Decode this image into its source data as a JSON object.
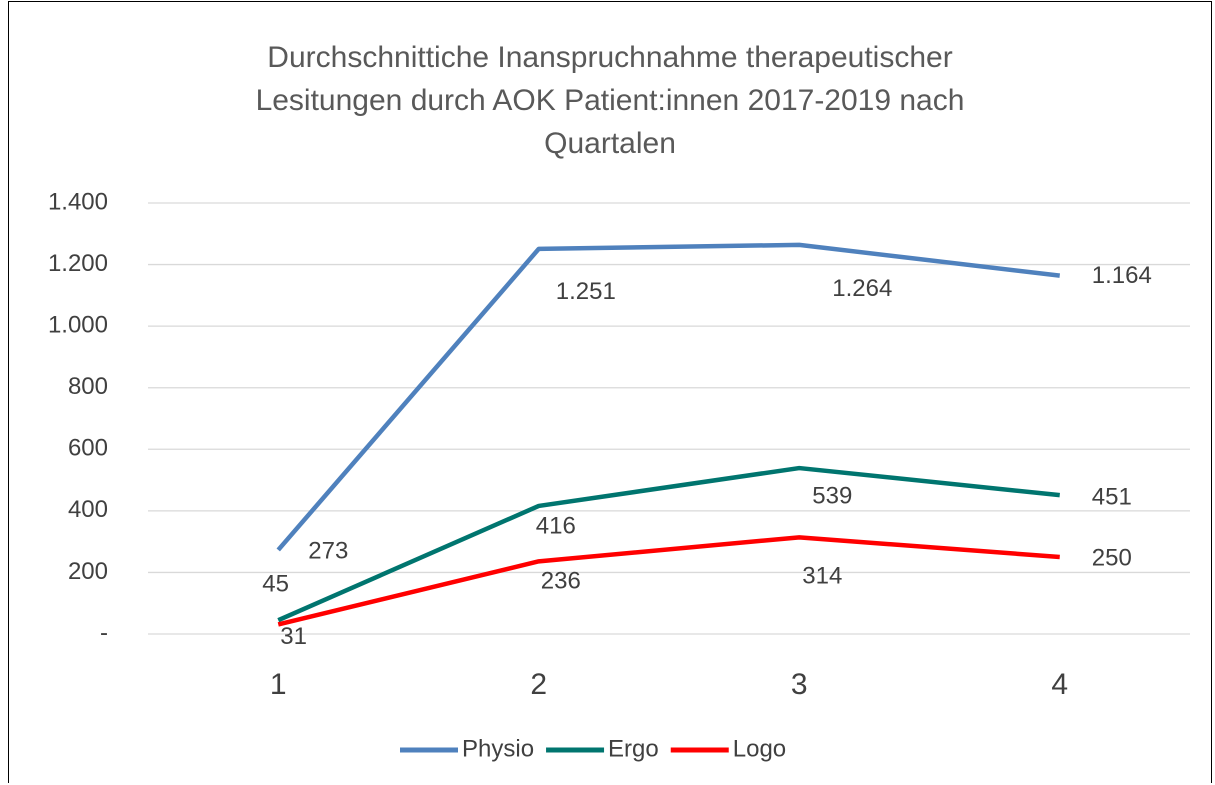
{
  "chart_data": {
    "type": "line",
    "title": "Durchschnittiche Inanspruchnahme therapeutischer Lesitungen durch AOK Patient:innen 2017-2019 nach Quartalen",
    "categories": [
      "1",
      "2",
      "3",
      "4"
    ],
    "series": [
      {
        "name": "Physio",
        "color": "#4f81bd",
        "values": [
          273,
          1251,
          1264,
          1164
        ],
        "value_labels": [
          "273",
          "1.251",
          "1.264",
          "1.164"
        ]
      },
      {
        "name": "Ergo",
        "color": "#00756f",
        "values": [
          45,
          416,
          539,
          451
        ],
        "value_labels": [
          "45",
          "416",
          "539",
          "451"
        ]
      },
      {
        "name": "Logo",
        "color": "#ff0000",
        "values": [
          31,
          236,
          314,
          250
        ],
        "value_labels": [
          "31",
          "236",
          "314",
          "250"
        ]
      }
    ],
    "ylim": [
      0,
      1400
    ],
    "yticks": [
      {
        "value": 0,
        "label": "-"
      },
      200,
      400,
      600,
      800,
      {
        "value": 1000,
        "label": "1.000"
      },
      {
        "value": 1200,
        "label": "1.200"
      },
      {
        "value": 1400,
        "label": "1.400"
      }
    ],
    "grid": true,
    "legend": "bottom"
  }
}
